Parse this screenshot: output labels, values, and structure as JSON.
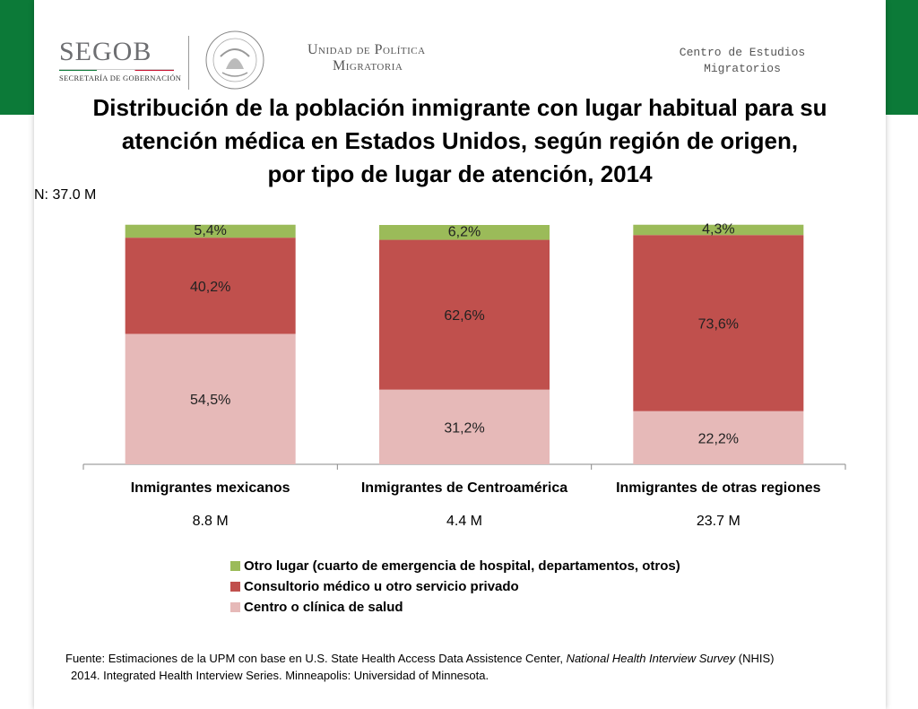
{
  "header": {
    "segob_word": "SEGOB",
    "segob_sub": "SECRETARÍA DE GOBERNACIÓN",
    "upm_line1": "Unidad de Política",
    "upm_line2": "Migratoria",
    "cem_line1": "Centro de Estudios",
    "cem_line2": "Migratorios"
  },
  "colors": {
    "band_green": "#0c7a38",
    "otro": "#9bbb59",
    "consultorio": "#c0504d",
    "centro": "#e6b9b8"
  },
  "chart_data": {
    "type": "bar",
    "stacked": true,
    "title_lines": [
      "Distribución de la población inmigrante con lugar habitual para su",
      "atención médica en Estados Unidos, según región de origen,",
      "por tipo de lugar de atención, 2014"
    ],
    "total_label": "N: 37.0 M",
    "categories": [
      "Inmigrantes mexicanos",
      "Inmigrantes de Centroamérica",
      "Inmigrantes de otras regiones"
    ],
    "category_totals": [
      "8.8 M",
      "4.4 M",
      "23.7 M"
    ],
    "ylim": [
      0,
      100
    ],
    "series": [
      {
        "name": "Centro o clínica de salud",
        "values": [
          54.5,
          31.2,
          22.2
        ],
        "labels": [
          "54,5%",
          "31,2%",
          "22,2%"
        ],
        "color": "#e6b9b8"
      },
      {
        "name": "Consultorio médico u otro servicio privado",
        "values": [
          40.2,
          62.6,
          73.6
        ],
        "labels": [
          "40,2%",
          "62,6%",
          "73,6%"
        ],
        "color": "#c0504d"
      },
      {
        "name": "Otro lugar (cuarto de emergencia de hospital, departamentos, otros)",
        "values": [
          5.4,
          6.2,
          4.3
        ],
        "labels": [
          "5,4%",
          "6,2%",
          "4,3%"
        ],
        "color": "#9bbb59"
      }
    ],
    "legend_position": "bottom",
    "grid": false
  },
  "legend": [
    "Otro lugar (cuarto de emergencia de hospital, departamentos, otros)",
    "Consultorio médico u otro servicio privado",
    "Centro o clínica de salud"
  ],
  "footer": {
    "line1_a": "Fuente: Estimaciones de la UPM con base en U.S. State Health Access Data Assistence Center, ",
    "line1_italic": "National Health Interview Survey",
    "line1_b": " (NHIS)",
    "line2": "2014. Integrated Health Interview Series. Minneapolis: Universidad of Minnesota."
  }
}
